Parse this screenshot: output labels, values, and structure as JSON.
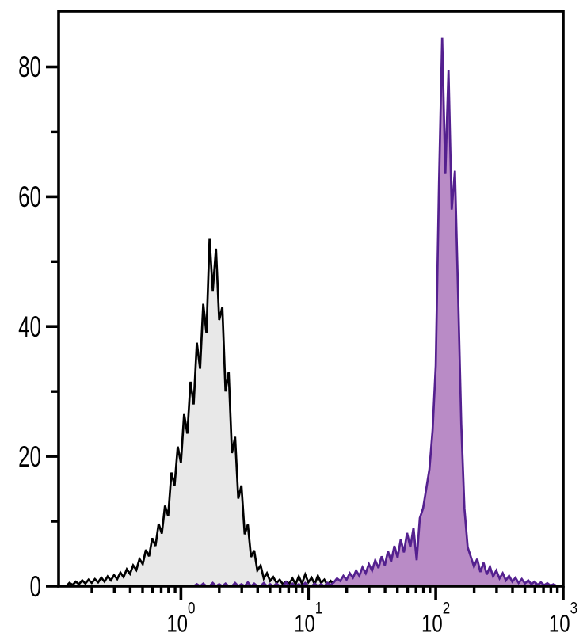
{
  "figure": {
    "background_color": "#ffffff",
    "frame_color": "#000000"
  },
  "chart_data": {
    "type": "area",
    "subtype": "flow-cytometry-histogram-overlay",
    "title": "",
    "xlabel": "",
    "ylabel": "",
    "grid": false,
    "legend": false,
    "x_axis": {
      "scale": "log10",
      "lim_log10": [
        -0.96,
        3.0
      ],
      "major_ticks_log10": [
        0,
        1,
        2,
        3
      ],
      "major_tick_labels": [
        {
          "base": "10",
          "exp": "0"
        },
        {
          "base": "10",
          "exp": "1"
        },
        {
          "base": "10",
          "exp": "2"
        },
        {
          "base": "10",
          "exp": "3"
        }
      ],
      "minor_tick_values": [
        0.2,
        0.3,
        0.4,
        0.5,
        0.6,
        0.7,
        0.8,
        0.9,
        2,
        3,
        4,
        5,
        6,
        7,
        8,
        9,
        20,
        30,
        40,
        50,
        60,
        70,
        80,
        90,
        200,
        300,
        400,
        500,
        600,
        700,
        800,
        900
      ]
    },
    "y_axis": {
      "lim": [
        0,
        88.6
      ],
      "major_ticks": [
        0,
        20,
        40,
        60,
        80
      ],
      "labels": [
        "0",
        "20",
        "40",
        "60",
        "80"
      ],
      "minor_ticks": [
        10,
        30,
        50,
        70
      ]
    },
    "series": [
      {
        "name": "black-outline-gray-histogram",
        "peak_x": 1.68,
        "peak_y": 53.5,
        "stroke": "#000000",
        "fill": "#e8e8e8",
        "log10_x_start": -0.9,
        "log10_x_step": 0.025,
        "values": [
          0.0,
          0.5,
          0.2,
          0.7,
          0.3,
          0.9,
          0.4,
          1.0,
          0.5,
          1.1,
          0.6,
          1.3,
          0.7,
          1.5,
          0.9,
          1.7,
          1.1,
          2.1,
          1.4,
          2.6,
          1.9,
          3.2,
          2.5,
          4.2,
          3.4,
          5.6,
          4.6,
          7.4,
          6.2,
          9.6,
          8.1,
          12.4,
          10.8,
          17.5,
          15.5,
          21.5,
          19.0,
          26.5,
          23.5,
          31.5,
          28.0,
          37.5,
          33.5,
          43.5,
          39.0,
          53.5,
          45.5,
          52.0,
          41.0,
          43.0,
          30.0,
          33.0,
          20.5,
          23.0,
          13.5,
          15.5,
          8.0,
          9.5,
          4.5,
          5.5,
          2.4,
          3.2,
          1.2,
          2.0,
          0.8,
          1.4,
          0.5,
          1.0,
          0.3,
          0.7,
          0.4,
          1.2,
          0.3,
          1.5,
          0.4,
          1.8,
          0.6,
          1.3,
          0.3,
          1.6,
          0.5,
          1.0,
          0.2,
          0.8,
          0.3,
          0.0
        ]
      },
      {
        "name": "purple-outline-purple-histogram",
        "peak_x": 112,
        "peak_y": 84.5,
        "stroke": "#54208f",
        "fill": "#b98bc6",
        "log10_x_start": 0.1,
        "log10_x_step": 0.025,
        "values": [
          0.0,
          0.3,
          0.0,
          0.4,
          0.0,
          0.0,
          0.5,
          0.0,
          0.3,
          0.0,
          0.4,
          0.0,
          0.0,
          0.5,
          0.0,
          0.3,
          0.0,
          0.6,
          0.0,
          0.4,
          0.0,
          0.0,
          0.5,
          0.0,
          0.3,
          0.0,
          0.4,
          0.0,
          0.0,
          0.6,
          0.0,
          0.4,
          0.0,
          0.3,
          0.0,
          0.5,
          0.0,
          0.0,
          0.4,
          0.0,
          0.3,
          0.0,
          0.5,
          0.2,
          0.6,
          1.2,
          0.8,
          1.6,
          1.0,
          2.0,
          1.3,
          2.4,
          1.6,
          2.9,
          2.0,
          3.4,
          2.4,
          4.0,
          2.8,
          4.6,
          3.2,
          5.4,
          3.8,
          6.2,
          4.4,
          7.2,
          5.2,
          8.2,
          6.0,
          9.0,
          4.0,
          10.5,
          12.0,
          15.0,
          18.0,
          24.0,
          34.0,
          62.0,
          84.5,
          63.5,
          79.5,
          58.0,
          64.0,
          45.0,
          25.0,
          12.0,
          6.0,
          4.5,
          3.0,
          4.2,
          2.2,
          3.6,
          1.8,
          3.0,
          1.5,
          2.4,
          1.2,
          2.0,
          0.9,
          1.6,
          0.7,
          1.3,
          0.5,
          1.1,
          0.4,
          0.9,
          0.3,
          0.7,
          0.2,
          0.6,
          0.15,
          0.45,
          0.1,
          0.3,
          0.0
        ]
      }
    ]
  }
}
